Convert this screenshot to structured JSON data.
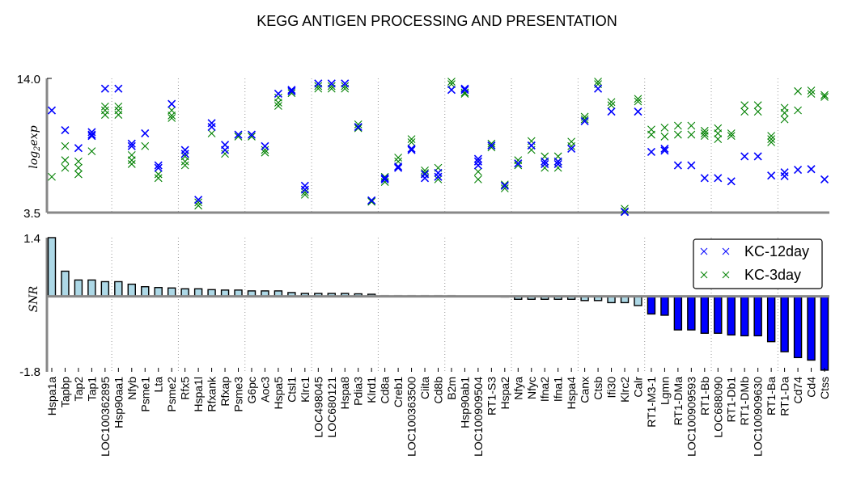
{
  "chart_data": [
    {
      "type": "scatter",
      "title": "KEGG ANTIGEN PROCESSING AND PRESENTATION",
      "ylabel": "log2exp",
      "ylim": [
        3.5,
        14.0
      ],
      "yticks": [
        "14.0",
        "3.5"
      ],
      "grid": "vertical dotted every 5 categories",
      "categories": [
        "Hspa1a",
        "Tapbp",
        "Tap2",
        "Tap1",
        "LOC100362895",
        "Hsp90aa1",
        "Nfyb",
        "Psme1",
        "Lta",
        "Psme2",
        "Rfx5",
        "Hspa1l",
        "Rfxank",
        "Rfxap",
        "Psme3",
        "G6pc",
        "Aoc3",
        "Hspa5",
        "Ctsl1",
        "Klrc1",
        "LOC498045",
        "LOC680121",
        "Hspa8",
        "Pdia3",
        "Klrd1",
        "Cd8a",
        "Creb1",
        "LOC100363500",
        "Ciita",
        "Cd8b",
        "B2m",
        "Hsp90ab1",
        "LOC100909504",
        "RT1-S3",
        "Hspa2",
        "Nfya",
        "Nfyc",
        "Ifna2",
        "Ifna1",
        "Hspa4",
        "Canx",
        "Ctsb",
        "Ifi30",
        "Klrc2",
        "Calr",
        "RT1-M3-1",
        "Lgmn",
        "RT1-DMa",
        "LOC100909593",
        "RT1-Bb",
        "LOC688090",
        "RT1-Db1",
        "RT1-DMb",
        "LOC100909630",
        "RT1-Ba",
        "RT1-Da",
        "Cd74",
        "Cd4",
        "Ctss"
      ],
      "series": [
        {
          "name": "KC-12day",
          "color": "#0000ff",
          "values": [
            [
              11.5
            ],
            [
              9.95
            ],
            [
              8.55
            ],
            [
              9.8,
              9.6,
              9.5
            ],
            [
              13.2
            ],
            [
              13.2
            ],
            [
              8.9,
              8.7
            ],
            [
              9.7
            ],
            [
              7.2,
              7.0
            ],
            [
              12.0
            ],
            [
              8.4,
              8.1
            ],
            [
              4.5
            ],
            [
              10.5,
              10.2
            ],
            [
              8.8,
              8.4
            ],
            [
              9.6
            ],
            [
              9.6
            ],
            [
              8.7
            ],
            [
              12.8
            ],
            [
              13.1,
              13.0
            ],
            [
              5.6,
              5.3
            ],
            [
              13.6
            ],
            [
              13.6
            ],
            [
              13.6
            ],
            [
              10.2
            ],
            [
              4.45
            ],
            [
              6.2,
              6.1
            ],
            [
              7.1,
              7.0
            ],
            [
              8.5,
              8.4
            ],
            [
              6.5,
              6.2
            ],
            [
              6.6,
              6.3
            ],
            [
              13.1
            ],
            [
              13.2,
              13.1
            ],
            [
              7.7,
              7.5,
              7.2
            ],
            [
              8.75
            ],
            [
              5.6
            ],
            [
              7.35
            ],
            [
              8.75
            ],
            [
              7.5,
              7.3
            ],
            [
              7.5,
              7.3
            ],
            [
              8.5
            ],
            [
              10.65
            ],
            [
              13.2
            ],
            [
              11.4
            ],
            [
              3.55
            ],
            [
              11.4
            ],
            [
              8.25
            ],
            [
              8.5,
              8.35
            ],
            [
              7.2
            ],
            [
              7.2
            ],
            [
              6.2
            ],
            [
              6.2
            ],
            [
              5.95
            ],
            [
              7.9
            ],
            [
              7.9
            ],
            [
              6.4
            ],
            [
              6.65,
              6.35
            ],
            [
              6.85
            ],
            [
              6.9
            ],
            [
              6.1
            ]
          ]
        },
        {
          "name": "KC-3day",
          "color": "#008000",
          "values": [
            [
              6.3
            ],
            [
              8.7,
              7.6,
              7.0
            ],
            [
              7.5,
              7.0,
              6.5
            ],
            [
              8.3
            ],
            [
              11.8,
              11.5,
              11.15
            ],
            [
              11.8,
              11.5,
              11.15
            ],
            [
              8.0,
              7.6,
              7.3
            ],
            [
              8.7
            ],
            [
              6.5,
              6.2
            ],
            [
              11.5,
              11.1,
              10.9
            ],
            [
              7.9,
              7.5,
              7.2
            ],
            [
              4.3,
              4.05
            ],
            [
              9.7
            ],
            [
              8.1
            ],
            [
              9.45
            ],
            [
              9.45
            ],
            [
              8.4,
              8.2
            ],
            [
              12.5,
              12.1,
              11.85
            ],
            [
              12.85
            ],
            [
              5.1,
              4.9
            ],
            [
              13.4,
              13.2
            ],
            [
              13.4,
              13.2
            ],
            [
              13.4,
              13.2
            ],
            [
              10.4,
              10.1
            ],
            [
              4.4,
              4.35
            ],
            [
              6.3,
              5.9
            ],
            [
              7.8,
              7.5
            ],
            [
              9.25,
              9.0
            ],
            [
              6.8,
              6.6
            ],
            [
              7.0,
              6.1
            ],
            [
              13.75,
              13.55
            ],
            [
              12.9,
              12.8
            ],
            [
              6.7,
              6.1
            ],
            [
              8.9,
              8.6
            ],
            [
              5.7,
              5.4
            ],
            [
              7.6,
              7.2
            ],
            [
              9.1,
              8.4
            ],
            [
              7.9,
              7.0
            ],
            [
              7.9,
              7.0
            ],
            [
              9.05,
              8.7
            ],
            [
              11.0,
              10.8
            ],
            [
              13.75,
              13.55
            ],
            [
              12.15,
              11.9
            ],
            [
              3.8,
              3.6
            ],
            [
              12.4,
              12.2
            ],
            [
              10.0,
              9.6
            ],
            [
              10.15,
              9.45
            ],
            [
              10.3,
              9.6
            ],
            [
              10.3,
              9.6
            ],
            [
              9.9,
              9.7,
              9.5
            ],
            [
              10.1,
              9.7,
              9.25
            ],
            [
              9.7,
              9.5
            ],
            [
              11.9,
              11.4
            ],
            [
              11.9,
              11.4
            ],
            [
              9.5,
              9.25,
              9.0
            ],
            [
              11.7,
              11.3,
              10.8
            ],
            [
              13.0,
              11.5
            ],
            [
              13.05,
              12.8
            ],
            [
              12.7,
              12.55
            ]
          ]
        }
      ],
      "legend": {
        "entries": [
          "KC-12day",
          "KC-3day"
        ],
        "placement": "upper-right of lower panel"
      }
    },
    {
      "type": "bar",
      "ylabel": "SNR",
      "ylim": [
        -1.8,
        1.4
      ],
      "yticks": [
        "1.4",
        "-1.8"
      ],
      "categories": [
        "Hspa1a",
        "Tapbp",
        "Tap2",
        "Tap1",
        "LOC100362895",
        "Hsp90aa1",
        "Nfyb",
        "Psme1",
        "Lta",
        "Psme2",
        "Rfx5",
        "Hspa1l",
        "Rfxank",
        "Rfxap",
        "Psme3",
        "G6pc",
        "Aoc3",
        "Hspa5",
        "Ctsl1",
        "Klrc1",
        "LOC498045",
        "LOC680121",
        "Hspa8",
        "Pdia3",
        "Klrd1",
        "Cd8a",
        "Creb1",
        "LOC100363500",
        "Ciita",
        "Cd8b",
        "B2m",
        "Hsp90ab1",
        "LOC100909504",
        "RT1-S3",
        "Hspa2",
        "Nfya",
        "Nfyc",
        "Ifna2",
        "Ifna1",
        "Hspa4",
        "Canx",
        "Ctsb",
        "Ifi30",
        "Klrc2",
        "Calr",
        "RT1-M3-1",
        "Lgmn",
        "RT1-DMa",
        "LOC100909593",
        "RT1-Bb",
        "LOC688090",
        "RT1-Db1",
        "RT1-DMb",
        "LOC100909630",
        "RT1-Ba",
        "RT1-Da",
        "Cd74",
        "Cd4",
        "Ctss"
      ],
      "values": [
        1.4,
        0.6,
        0.39,
        0.39,
        0.35,
        0.35,
        0.29,
        0.23,
        0.21,
        0.2,
        0.18,
        0.18,
        0.16,
        0.15,
        0.15,
        0.13,
        0.13,
        0.13,
        0.09,
        0.07,
        0.07,
        0.07,
        0.07,
        0.06,
        0.05,
        0.02,
        0.02,
        0.02,
        0.02,
        0.02,
        0.02,
        0.0,
        -0.01,
        -0.01,
        -0.02,
        -0.07,
        -0.07,
        -0.07,
        -0.07,
        -0.07,
        -0.1,
        -0.1,
        -0.15,
        -0.15,
        -0.22,
        -0.42,
        -0.45,
        -0.8,
        -0.8,
        -0.88,
        -0.88,
        -0.92,
        -0.94,
        -0.94,
        -1.08,
        -1.32,
        -1.46,
        -1.52,
        -1.76
      ],
      "colors": {
        "low_magnitude": "#add8e6",
        "high_negative": "#0000ff"
      },
      "highlight_threshold": -0.3
    }
  ]
}
